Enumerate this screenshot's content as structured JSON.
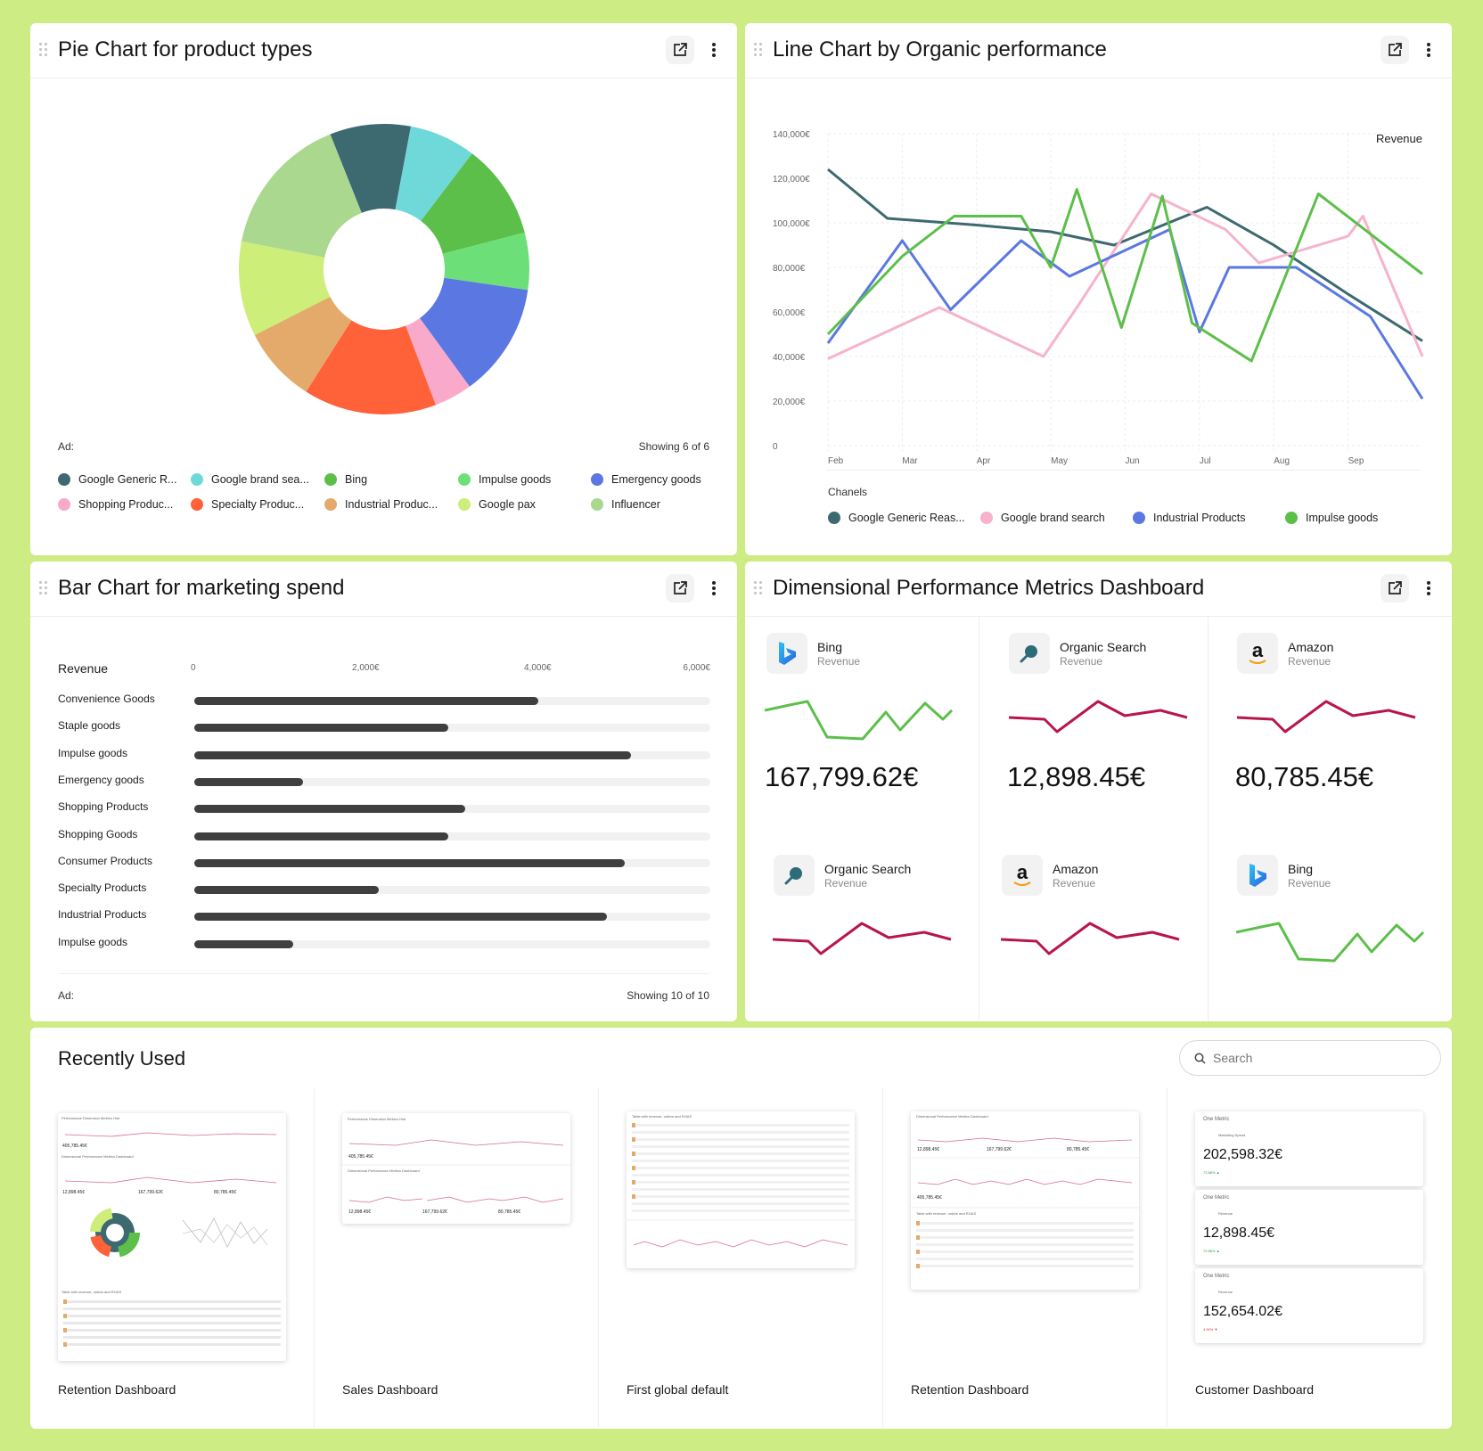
{
  "colors": {
    "background": "#cdec84",
    "bar_fill": "#3f3f3f",
    "sparkline_green": "#5cbf4a",
    "sparkline_crimson": "#b8154f"
  },
  "pie_card": {
    "title": "Pie Chart for product types",
    "footer_left": "Ad:",
    "footer_right": "Showing 6 of 6",
    "icons": [
      "external-link-icon",
      "more-vertical-icon",
      "drag-handle-icon"
    ]
  },
  "line_card": {
    "title": "Line Chart by Organic performance",
    "legend_title": "Chanels"
  },
  "bar_card": {
    "title": "Bar Chart for marketing spend",
    "footer_left": "Ad:",
    "footer_right": "Showing 10 of 10"
  },
  "metrics_card": {
    "title": "Dimensional Performance Metrics Dashboard",
    "tiles": [
      {
        "name": "Bing",
        "sub": "Revenue",
        "value": "167,799.62€",
        "logo": "bing-logo-icon",
        "trend": "green"
      },
      {
        "name": "Organic Search",
        "sub": "Revenue",
        "value": "12,898.45€",
        "logo": "magnifier-icon",
        "trend": "crimson"
      },
      {
        "name": "Amazon",
        "sub": "Revenue",
        "value": "80,785.45€",
        "logo": "amazon-logo-icon",
        "trend": "crimson"
      },
      {
        "name": "Organic Search",
        "sub": "Revenue",
        "value": "",
        "logo": "magnifier-icon",
        "trend": "crimson"
      },
      {
        "name": "Amazon",
        "sub": "Revenue",
        "value": "",
        "logo": "amazon-logo-icon",
        "trend": "crimson"
      },
      {
        "name": "Bing",
        "sub": "Revenue",
        "value": "",
        "logo": "bing-logo-icon",
        "trend": "green"
      }
    ]
  },
  "recent": {
    "title": "Recently Used",
    "search_placeholder": "Search",
    "items": [
      {
        "name": "Retention Dashboard"
      },
      {
        "name": "Sales Dashboard"
      },
      {
        "name": "First global default"
      },
      {
        "name": "Retention Dashboard"
      },
      {
        "name": "Customer Dashboard"
      }
    ],
    "thumb_text": {
      "one_metric": "One Metric",
      "marketing_spend": "Marketing Spend",
      "revenue": "Revenue",
      "v1": "202,598.32€",
      "v2": "12,898.45€",
      "v3": "152,654.02€",
      "d1": "72.88% ▲",
      "d2": "72.88% ▲",
      "d3": "4.90% ▼",
      "perf_hub": "Performance Dimension Metrics Hub",
      "dim_dash": "Dimensional Performance Metrics Dashboard",
      "table_title": "Table with revenue, orders and ROAS",
      "m1": "405,785.45€",
      "m2": "167,799.62€",
      "m3": "80,785.45€",
      "m4": "12,898.45€"
    }
  },
  "chart_data": [
    {
      "type": "pie",
      "title": "Pie Chart for product types",
      "donut": true,
      "slices": [
        {
          "name": "Google Generic R...",
          "value": 8.5,
          "color": "#3d6970"
        },
        {
          "name": "Google brand sea...",
          "value": 7,
          "color": "#6fd9d9"
        },
        {
          "name": "Bing",
          "value": 10,
          "color": "#5cbf4a"
        },
        {
          "name": "Impulse goods",
          "value": 6,
          "color": "#6ddf79"
        },
        {
          "name": "Emergency goods",
          "value": 12,
          "color": "#5b78e2"
        },
        {
          "name": "Shopping Produc...",
          "value": 4,
          "color": "#f9aacb"
        },
        {
          "name": "Specialty Produc...",
          "value": 14,
          "color": "#ff6138"
        },
        {
          "name": "Industrial Produc...",
          "value": 8,
          "color": "#e4aa6b"
        },
        {
          "name": "Google pax",
          "value": 10,
          "color": "#cdee79"
        },
        {
          "name": "Influencer",
          "value": 15,
          "color": "#a9d88e"
        }
      ]
    },
    {
      "type": "line",
      "title": "Line Chart by Organic performance",
      "ylabel": "Revenue",
      "x": [
        "Feb",
        "Mar",
        "Apr",
        "May",
        "Jun",
        "Jul",
        "Aug",
        "Sep"
      ],
      "y_ticks": [
        "140,000€",
        "120,000€",
        "100,000€",
        "80,000€",
        "60,000€",
        "40,000€",
        "20,000€",
        "0"
      ],
      "ylim": [
        0,
        140000
      ],
      "grid": true,
      "legend_title": "Chanels",
      "series": [
        {
          "name": "Google Generic Reas...",
          "color": "#3d6970",
          "points": [
            [
              0,
              124000
            ],
            [
              0.8,
              102000
            ],
            [
              2.0,
              99000
            ],
            [
              3.0,
              96000
            ],
            [
              3.85,
              90000
            ],
            [
              5.1,
              107000
            ],
            [
              6.0,
              90000
            ],
            [
              7.0,
              68000
            ],
            [
              8.0,
              47000
            ]
          ]
        },
        {
          "name": "Google brand search",
          "color": "#f6b3cb",
          "points": [
            [
              0,
              39000
            ],
            [
              1.5,
              62000
            ],
            [
              2.9,
              40000
            ],
            [
              3.35,
              62000
            ],
            [
              4.35,
              113000
            ],
            [
              5.35,
              97000
            ],
            [
              5.8,
              82000
            ],
            [
              7.0,
              94000
            ],
            [
              7.2,
              103000
            ],
            [
              8.0,
              40000
            ]
          ]
        },
        {
          "name": "Industrial Products",
          "color": "#5b78e2",
          "points": [
            [
              0,
              46000
            ],
            [
              1.0,
              92000
            ],
            [
              1.65,
              61000
            ],
            [
              2.6,
              92000
            ],
            [
              3.25,
              76000
            ],
            [
              4.6,
              97000
            ],
            [
              5.0,
              51000
            ],
            [
              5.4,
              80000
            ],
            [
              6.3,
              80000
            ],
            [
              7.3,
              58000
            ],
            [
              8.0,
              21000
            ]
          ]
        },
        {
          "name": "Impulse goods",
          "color": "#5cbf4a",
          "points": [
            [
              0,
              50000
            ],
            [
              1.0,
              85000
            ],
            [
              1.7,
              103000
            ],
            [
              2.6,
              103000
            ],
            [
              3.0,
              80000
            ],
            [
              3.35,
              115000
            ],
            [
              3.95,
              53000
            ],
            [
              4.5,
              112000
            ],
            [
              4.9,
              55000
            ],
            [
              5.7,
              38000
            ],
            [
              6.6,
              113000
            ],
            [
              8.0,
              77000
            ]
          ]
        }
      ]
    },
    {
      "type": "bar",
      "orientation": "horizontal",
      "title": "Bar Chart for marketing spend",
      "xlabel": "Revenue",
      "x_ticks": [
        "0",
        "2,000€",
        "4,000€",
        "6,000€"
      ],
      "xlim": [
        0,
        6000
      ],
      "categories": [
        "Convenience Goods",
        "Staple goods",
        "Impulse goods",
        "Emergency goods",
        "Shopping Products",
        "Shopping Goods",
        "Consumer Products",
        "Specialty Products",
        "Industrial Products",
        "Impulse goods"
      ],
      "values": [
        4000,
        2950,
        5080,
        1260,
        3150,
        2950,
        5000,
        2150,
        4800,
        1150
      ]
    }
  ]
}
